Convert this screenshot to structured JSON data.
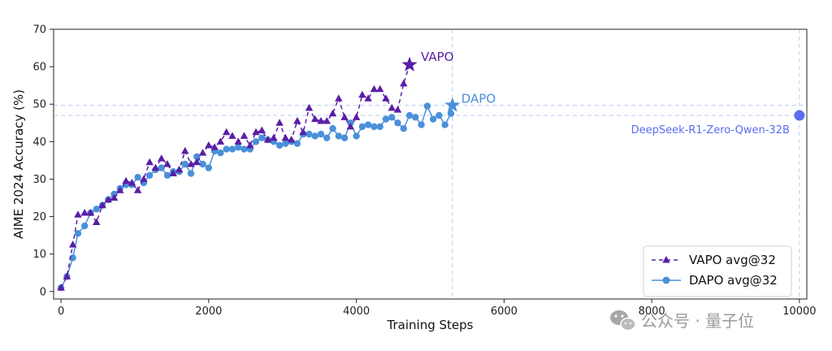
{
  "colors": {
    "vapo": "#5a1ea6",
    "dapo": "#4a90d9",
    "deepseek": "#5b6cf0",
    "ref_line": "#b9cdf2",
    "axis": "#222222",
    "watermark": "#9a9a9a"
  },
  "annotations": {
    "vapo_label": "VAPO",
    "dapo_label": "DAPO",
    "deepseek_label": "DeepSeek-R1-Zero-Qwen-32B"
  },
  "watermark": {
    "text": "公众号 · 量子位",
    "icon": "wechat-icon"
  },
  "chart_data": {
    "type": "line",
    "xlabel": "Training Steps",
    "ylabel": "AIME 2024 Accuracy (%)",
    "xlim": [
      -100,
      10100
    ],
    "ylim": [
      -2,
      70
    ],
    "x_ticks": [
      0,
      2000,
      4000,
      6000,
      8000,
      10000
    ],
    "y_ticks": [
      0,
      10,
      20,
      30,
      40,
      50,
      60,
      70
    ],
    "grid": false,
    "legend": {
      "placement": "bottom-right",
      "entries": [
        "VAPO avg@32",
        "DAPO avg@32"
      ]
    },
    "reference_lines": {
      "vertical": [
        5300,
        10000
      ],
      "horizontal": [
        49.7,
        47
      ]
    },
    "series": [
      {
        "name": "VAPO avg@32",
        "marker": "triangle",
        "linestyle": "dashed",
        "points": [
          [
            0,
            1
          ],
          [
            80,
            4
          ],
          [
            160,
            12.5
          ],
          [
            230,
            20.5
          ],
          [
            320,
            21
          ],
          [
            400,
            21
          ],
          [
            480,
            18.5
          ],
          [
            560,
            23
          ],
          [
            640,
            24.5
          ],
          [
            720,
            25
          ],
          [
            800,
            27
          ],
          [
            880,
            29.5
          ],
          [
            960,
            29
          ],
          [
            1040,
            27
          ],
          [
            1120,
            30
          ],
          [
            1200,
            34.5
          ],
          [
            1280,
            33
          ],
          [
            1360,
            35.5
          ],
          [
            1440,
            34
          ],
          [
            1520,
            31.5
          ],
          [
            1600,
            32.5
          ],
          [
            1680,
            37.5
          ],
          [
            1760,
            34
          ],
          [
            1840,
            34.5
          ],
          [
            1920,
            37
          ],
          [
            2000,
            39
          ],
          [
            2080,
            38.5
          ],
          [
            2160,
            40
          ],
          [
            2240,
            42.5
          ],
          [
            2320,
            41.5
          ],
          [
            2400,
            40
          ],
          [
            2480,
            41.5
          ],
          [
            2560,
            39
          ],
          [
            2640,
            42.5
          ],
          [
            2720,
            43
          ],
          [
            2800,
            40.5
          ],
          [
            2880,
            41
          ],
          [
            2960,
            45
          ],
          [
            3040,
            41
          ],
          [
            3120,
            40.5
          ],
          [
            3200,
            45.5
          ],
          [
            3280,
            42.5
          ],
          [
            3360,
            49
          ],
          [
            3440,
            46
          ],
          [
            3520,
            45.5
          ],
          [
            3600,
            45.5
          ],
          [
            3680,
            47.5
          ],
          [
            3760,
            51.5
          ],
          [
            3840,
            46.5
          ],
          [
            3920,
            44
          ],
          [
            4000,
            46.5
          ],
          [
            4080,
            52.5
          ],
          [
            4160,
            51.5
          ],
          [
            4240,
            54
          ],
          [
            4320,
            54
          ],
          [
            4400,
            51.5
          ],
          [
            4480,
            49
          ],
          [
            4560,
            48.5
          ],
          [
            4640,
            55.5
          ],
          [
            4720,
            60.5
          ]
        ],
        "final_label": "VAPO"
      },
      {
        "name": "DAPO avg@32",
        "marker": "circle",
        "linestyle": "solid",
        "points": [
          [
            0,
            1
          ],
          [
            80,
            4
          ],
          [
            160,
            9
          ],
          [
            230,
            15.5
          ],
          [
            320,
            17.5
          ],
          [
            400,
            21
          ],
          [
            480,
            22
          ],
          [
            560,
            23
          ],
          [
            640,
            24.5
          ],
          [
            720,
            26
          ],
          [
            800,
            27.5
          ],
          [
            880,
            28.5
          ],
          [
            960,
            28.5
          ],
          [
            1040,
            30.5
          ],
          [
            1120,
            29
          ],
          [
            1200,
            31
          ],
          [
            1280,
            32.5
          ],
          [
            1360,
            33
          ],
          [
            1440,
            31
          ],
          [
            1520,
            32
          ],
          [
            1600,
            32
          ],
          [
            1680,
            34
          ],
          [
            1760,
            31.5
          ],
          [
            1840,
            36
          ],
          [
            1920,
            34
          ],
          [
            2000,
            33
          ],
          [
            2080,
            37.5
          ],
          [
            2160,
            37
          ],
          [
            2240,
            38
          ],
          [
            2320,
            38
          ],
          [
            2400,
            38.5
          ],
          [
            2480,
            38
          ],
          [
            2560,
            38
          ],
          [
            2640,
            40
          ],
          [
            2720,
            41
          ],
          [
            2800,
            40.5
          ],
          [
            2880,
            40
          ],
          [
            2960,
            39
          ],
          [
            3040,
            39.5
          ],
          [
            3120,
            40
          ],
          [
            3200,
            39.5
          ],
          [
            3280,
            42
          ],
          [
            3360,
            42
          ],
          [
            3440,
            41.5
          ],
          [
            3520,
            42
          ],
          [
            3600,
            41
          ],
          [
            3680,
            43.5
          ],
          [
            3760,
            41.5
          ],
          [
            3840,
            41
          ],
          [
            3920,
            45
          ],
          [
            4000,
            41.5
          ],
          [
            4080,
            44
          ],
          [
            4160,
            44.5
          ],
          [
            4240,
            44
          ],
          [
            4320,
            44
          ],
          [
            4400,
            46
          ],
          [
            4480,
            46.5
          ],
          [
            4560,
            45
          ],
          [
            4640,
            43.5
          ],
          [
            4720,
            47
          ],
          [
            4800,
            46.5
          ],
          [
            4880,
            44.5
          ],
          [
            4960,
            49.5
          ],
          [
            5040,
            46
          ],
          [
            5120,
            47
          ],
          [
            5200,
            44.5
          ],
          [
            5280,
            47.5
          ],
          [
            5300,
            49.7
          ]
        ],
        "final_label": "DAPO"
      },
      {
        "name": "DeepSeek-R1-Zero-Qwen-32B",
        "marker": "circle",
        "points": [
          [
            10000,
            47
          ]
        ]
      }
    ]
  }
}
